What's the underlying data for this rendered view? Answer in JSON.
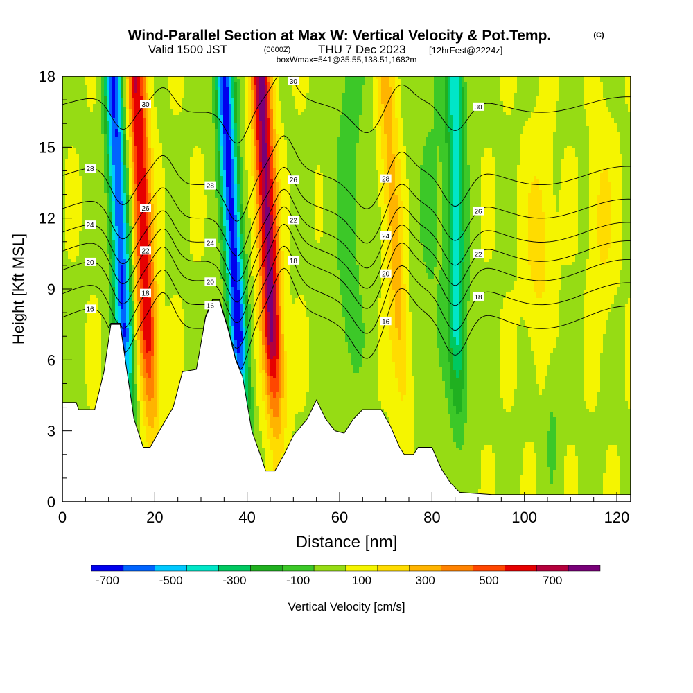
{
  "header": {
    "title": "Wind-Parallel Section at Max W: Vertical Velocity & Pot.Temp.",
    "copyright": "(C)",
    "valid_prefix": "Valid 1500 JST",
    "valid_zulu": "(0600Z)",
    "valid_date": "THU 7 Dec 2023",
    "forecast_info": "[12hrFcst@2224z]",
    "box_info": "boxWmax=541@35.55,138.51,1682m"
  },
  "chart_data": {
    "type": "heatmap",
    "xlabel": "Distance [nm]",
    "ylabel": "Height [Kft MSL]",
    "xlim": [
      0,
      123
    ],
    "ylim": [
      0,
      18
    ],
    "x_ticks": [
      0,
      20,
      40,
      60,
      80,
      100,
      120
    ],
    "y_ticks": [
      0,
      3,
      6,
      9,
      12,
      15,
      18
    ],
    "x_tick_labels": [
      "0",
      "20",
      "40",
      "60",
      "80",
      "100",
      "120"
    ],
    "y_tick_labels": [
      "0",
      "3",
      "6",
      "9",
      "12",
      "15",
      "18"
    ],
    "colorbar": {
      "label": "Vertical Velocity [cm/s]",
      "tick_labels": [
        "-700",
        "-500",
        "-300",
        "-100",
        "100",
        "300",
        "500",
        "700"
      ],
      "tick_values": [
        -700,
        -500,
        -300,
        -100,
        100,
        300,
        500,
        700
      ],
      "range": [
        -750,
        850
      ],
      "bins": [
        {
          "from": -750,
          "to": -650,
          "color": "#0000ee"
        },
        {
          "from": -650,
          "to": -550,
          "color": "#0064ff"
        },
        {
          "from": -550,
          "to": -450,
          "color": "#00c8ff"
        },
        {
          "from": -450,
          "to": -350,
          "color": "#00e6c8"
        },
        {
          "from": -350,
          "to": -250,
          "color": "#00c860"
        },
        {
          "from": -250,
          "to": -150,
          "color": "#20b020"
        },
        {
          "from": -150,
          "to": -50,
          "color": "#3cc828"
        },
        {
          "from": -50,
          "to": 50,
          "color": "#96dc14"
        },
        {
          "from": 50,
          "to": 150,
          "color": "#f5f500"
        },
        {
          "from": 150,
          "to": 250,
          "color": "#ffdc00"
        },
        {
          "from": 250,
          "to": 350,
          "color": "#ffb400"
        },
        {
          "from": 350,
          "to": 450,
          "color": "#ff8200"
        },
        {
          "from": 450,
          "to": 550,
          "color": "#ff4600"
        },
        {
          "from": 550,
          "to": 650,
          "color": "#e60000"
        },
        {
          "from": 650,
          "to": 750,
          "color": "#b4003c"
        },
        {
          "from": 750,
          "to": 850,
          "color": "#780078"
        }
      ]
    },
    "updraft_bands": [
      {
        "x_bottom": 20,
        "x_top": 16,
        "peak": 600
      },
      {
        "x_bottom": 47,
        "x_top": 43,
        "peak": 750
      },
      {
        "x_bottom": 75,
        "x_top": 70,
        "peak": 250
      }
    ],
    "downdraft_bands": [
      {
        "x_bottom": 15,
        "x_top": 11,
        "peak": -700
      },
      {
        "x_bottom": 40,
        "x_top": 35,
        "peak": -750
      },
      {
        "x_bottom": 86,
        "x_top": 85,
        "peak": -400
      }
    ],
    "terrain": [
      {
        "x": 0,
        "y": 4.2
      },
      {
        "x": 3,
        "y": 4.2
      },
      {
        "x": 3.5,
        "y": 3.9
      },
      {
        "x": 7,
        "y": 3.9
      },
      {
        "x": 9,
        "y": 5.5
      },
      {
        "x": 10.5,
        "y": 7.5
      },
      {
        "x": 12.5,
        "y": 7.5
      },
      {
        "x": 14,
        "y": 5.5
      },
      {
        "x": 15.5,
        "y": 3.5
      },
      {
        "x": 17.5,
        "y": 2.3
      },
      {
        "x": 19,
        "y": 2.3
      },
      {
        "x": 21,
        "y": 3.0
      },
      {
        "x": 24,
        "y": 4.0
      },
      {
        "x": 26,
        "y": 5.5
      },
      {
        "x": 29,
        "y": 5.6
      },
      {
        "x": 31,
        "y": 7.8
      },
      {
        "x": 32.5,
        "y": 8.5
      },
      {
        "x": 34,
        "y": 8.5
      },
      {
        "x": 36,
        "y": 7.2
      },
      {
        "x": 37.5,
        "y": 6.0
      },
      {
        "x": 39,
        "y": 5.3
      },
      {
        "x": 41,
        "y": 3.0
      },
      {
        "x": 43,
        "y": 1.9
      },
      {
        "x": 44,
        "y": 1.3
      },
      {
        "x": 46,
        "y": 1.3
      },
      {
        "x": 48,
        "y": 2.0
      },
      {
        "x": 50,
        "y": 2.8
      },
      {
        "x": 53,
        "y": 3.5
      },
      {
        "x": 55,
        "y": 4.3
      },
      {
        "x": 57,
        "y": 3.5
      },
      {
        "x": 59,
        "y": 3.0
      },
      {
        "x": 61,
        "y": 2.9
      },
      {
        "x": 63,
        "y": 3.5
      },
      {
        "x": 65,
        "y": 3.9
      },
      {
        "x": 69,
        "y": 3.9
      },
      {
        "x": 71,
        "y": 3.2
      },
      {
        "x": 73,
        "y": 2.3
      },
      {
        "x": 74,
        "y": 2.0
      },
      {
        "x": 76,
        "y": 2.0
      },
      {
        "x": 77,
        "y": 2.3
      },
      {
        "x": 80,
        "y": 2.3
      },
      {
        "x": 82,
        "y": 1.4
      },
      {
        "x": 84,
        "y": 0.8
      },
      {
        "x": 86,
        "y": 0.4
      },
      {
        "x": 93,
        "y": 0.3
      },
      {
        "x": 123,
        "y": 0.3
      }
    ],
    "theta_contours": [
      {
        "label": "16",
        "base": 7.8,
        "amp_mtn": 1.6,
        "show": true
      },
      {
        "label": "18",
        "base": 8.8,
        "amp_mtn": 1.55,
        "show": true
      },
      {
        "label": "20",
        "base": 9.8,
        "amp_mtn": 1.5,
        "show": true
      },
      {
        "label": "22",
        "base": 10.6,
        "amp_mtn": 1.45,
        "show": true
      },
      {
        "label": "24",
        "base": 11.4,
        "amp_mtn": 1.4,
        "show": true
      },
      {
        "label": "26",
        "base": 12.4,
        "amp_mtn": 1.35,
        "show": true
      },
      {
        "label": "28",
        "base": 13.8,
        "amp_mtn": 1.3,
        "show": true
      },
      {
        "label": "30",
        "base": 16.8,
        "amp_mtn": 1.1,
        "show": true
      }
    ]
  }
}
